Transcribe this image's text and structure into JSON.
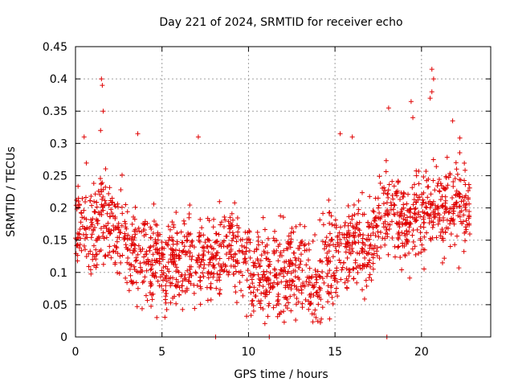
{
  "chart_data": {
    "type": "scatter",
    "title": "Day 221 of 2024, SRMTID for receiver echo",
    "xlabel": "GPS time / hours",
    "ylabel": "SRMTID / TECUs",
    "xlim": [
      0,
      24
    ],
    "ylim": [
      0,
      0.45
    ],
    "xticks": [
      0,
      5,
      10,
      15,
      20
    ],
    "xtick_labels": [
      "0",
      "5",
      "10",
      "15",
      "20"
    ],
    "yticks": [
      0,
      0.05,
      0.1,
      0.15,
      0.2,
      0.25,
      0.3,
      0.35,
      0.4,
      0.45
    ],
    "ytick_labels": [
      "0",
      "0.05",
      "0.1",
      "0.15",
      "0.2",
      "0.25",
      "0.3",
      "0.35",
      "0.4",
      "0.45"
    ],
    "grid": true,
    "marker": "+",
    "color": "#e00000",
    "series": [
      {
        "name": "SRMTID",
        "trend": {
          "x": [
            0,
            0.5,
            1,
            1.5,
            2,
            3,
            4,
            5,
            6,
            7,
            8,
            9,
            10,
            11,
            12,
            13,
            13.7,
            14.5,
            15,
            16,
            17,
            18,
            19,
            20,
            21,
            22,
            22.8
          ],
          "y": [
            0.17,
            0.19,
            0.165,
            0.19,
            0.17,
            0.14,
            0.13,
            0.12,
            0.115,
            0.12,
            0.12,
            0.14,
            0.12,
            0.09,
            0.1,
            0.11,
            0.075,
            0.11,
            0.13,
            0.14,
            0.14,
            0.2,
            0.17,
            0.19,
            0.2,
            0.21,
            0.2
          ]
        },
        "highlights": [
          {
            "x": 1.5,
            "y": 0.4
          },
          {
            "x": 1.55,
            "y": 0.39
          },
          {
            "x": 1.6,
            "y": 0.35
          },
          {
            "x": 1.45,
            "y": 0.32
          },
          {
            "x": 0.5,
            "y": 0.31
          },
          {
            "x": 3.6,
            "y": 0.315
          },
          {
            "x": 7.1,
            "y": 0.31
          },
          {
            "x": 15.3,
            "y": 0.315
          },
          {
            "x": 16.0,
            "y": 0.31
          },
          {
            "x": 18.1,
            "y": 0.355
          },
          {
            "x": 19.4,
            "y": 0.365
          },
          {
            "x": 19.5,
            "y": 0.34
          },
          {
            "x": 20.6,
            "y": 0.415
          },
          {
            "x": 20.7,
            "y": 0.4
          },
          {
            "x": 20.6,
            "y": 0.38
          },
          {
            "x": 20.5,
            "y": 0.37
          },
          {
            "x": 21.8,
            "y": 0.335
          },
          {
            "x": 4.7,
            "y": 0.03
          },
          {
            "x": 8.1,
            "y": 0.0
          },
          {
            "x": 11.2,
            "y": 0.0
          },
          {
            "x": 18.0,
            "y": 0.0
          },
          {
            "x": 13.9,
            "y": 0.03
          },
          {
            "x": 11.8,
            "y": 0.035
          },
          {
            "x": 10.3,
            "y": 0.04
          }
        ]
      }
    ]
  }
}
